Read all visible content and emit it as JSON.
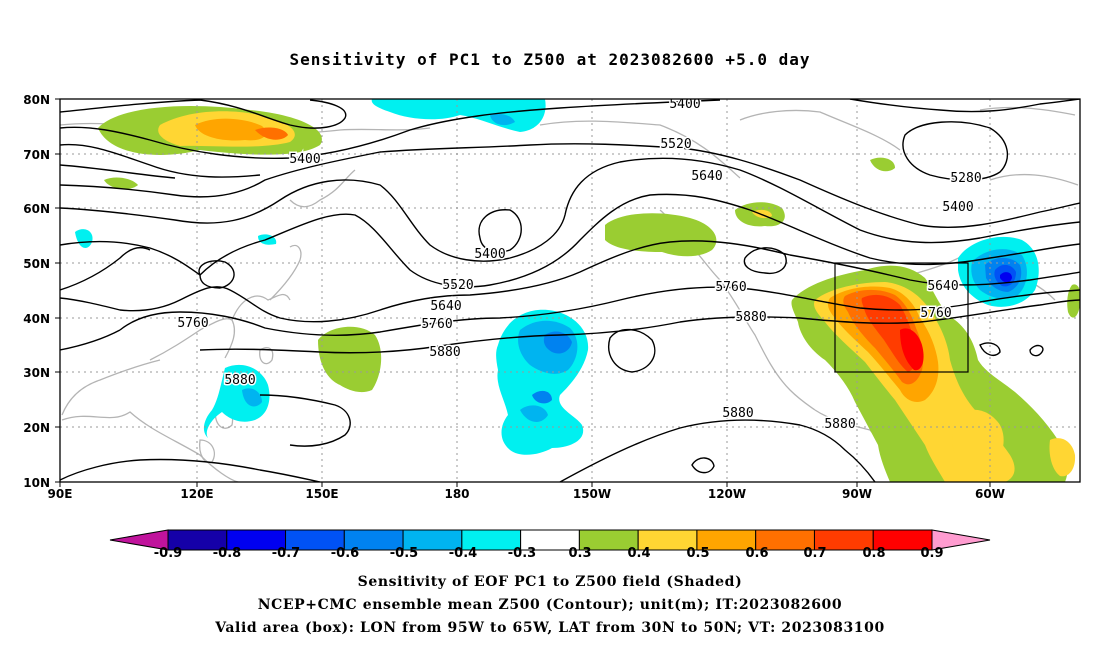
{
  "title": "Sensitivity of PC1 to Z500 at 2023082600 +5.0 day",
  "x_ticks": [
    "90E",
    "120E",
    "150E",
    "180",
    "150W",
    "120W",
    "90W",
    "60W"
  ],
  "y_ticks": [
    "80N",
    "70N",
    "60N",
    "50N",
    "40N",
    "30N",
    "20N",
    "10N"
  ],
  "contour_labels": [
    "5400",
    "5520",
    "5640",
    "5280",
    "5400",
    "5400",
    "5400",
    "5520",
    "5640",
    "5760",
    "5880",
    "5760",
    "5880",
    "5880",
    "5760",
    "5640",
    "5760",
    "5880",
    "5880"
  ],
  "colorbar": {
    "labels": [
      "-0.9",
      "-0.8",
      "-0.7",
      "-0.6",
      "-0.5",
      "-0.4",
      "-0.3",
      "0.3",
      "0.4",
      "0.5",
      "0.6",
      "0.7",
      "0.8",
      "0.9"
    ],
    "colors": [
      "#1500a8",
      "#0000f0",
      "#0052f5",
      "#0082f0",
      "#00b4f0",
      "#00f0f0",
      "#ffffff",
      "#9acd32",
      "#ffd633",
      "#ffa500",
      "#ff7000",
      "#ff3c00",
      "#ff0000"
    ],
    "low_end_color": "#c0139c",
    "high_end_color": "#ff9cd0"
  },
  "valid_box": {
    "lon": [
      "95W",
      "65W"
    ],
    "lat": [
      "30N",
      "50N"
    ]
  },
  "captions": [
    "Sensitivity of EOF PC1 to Z500 field (Shaded)",
    "NCEP+CMC ensemble mean Z500 (Contour); unit(m); IT:2023082600",
    "Valid area (box): LON from 95W to 65W, LAT from 30N to 50N; VT: 2023083100"
  ]
}
